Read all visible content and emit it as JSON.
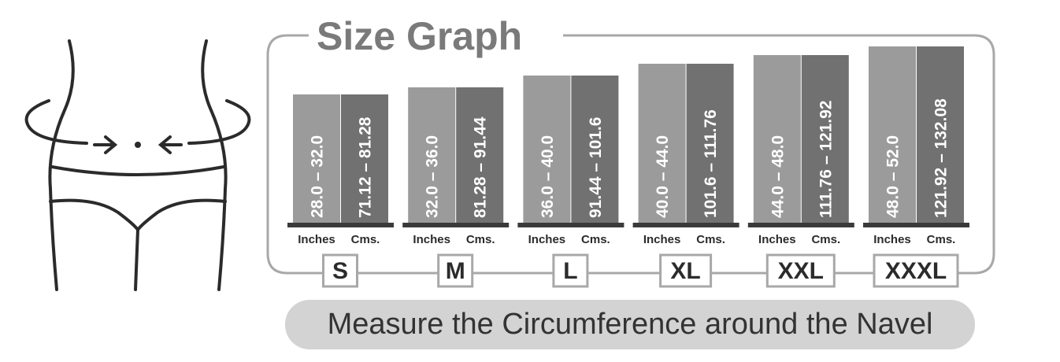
{
  "title": "Size Graph",
  "sizes": [
    {
      "size": "S",
      "inches": "28.0 – 32.0",
      "cms": "71.12 – 81.28",
      "inches_label": "Inches",
      "cms_label": "Cms."
    },
    {
      "size": "M",
      "inches": "32.0 – 36.0",
      "cms": "81.28 – 91.44",
      "inches_label": "Inches",
      "cms_label": "Cms."
    },
    {
      "size": "L",
      "inches": "36.0 – 40.0",
      "cms": "91.44 – 101.6",
      "inches_label": "Inches",
      "cms_label": "Cms."
    },
    {
      "size": "XL",
      "inches": "40.0 – 44.0",
      "cms": "101.6 – 111.76",
      "inches_label": "Inches",
      "cms_label": "Cms."
    },
    {
      "size": "XXL",
      "inches": "44.0 – 48.0",
      "cms": "111.76 – 121.92",
      "inches_label": "Inches",
      "cms_label": "Cms."
    },
    {
      "size": "XXXL",
      "inches": "48.0 – 52.0",
      "cms": "121.92 – 132.08",
      "inches_label": "Inches",
      "cms_label": "Cms."
    }
  ],
  "footer": "Measure the Circumference around the Navel"
}
